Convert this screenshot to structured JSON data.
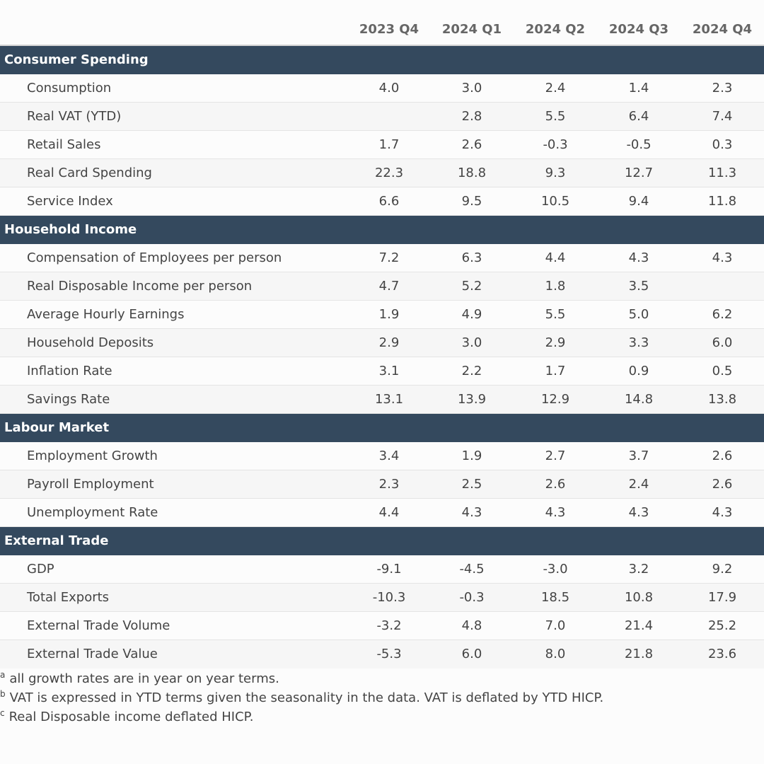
{
  "chart_data": {
    "type": "table",
    "columns": [
      "2023 Q4",
      "2024 Q1",
      "2024 Q2",
      "2024 Q3",
      "2024 Q4"
    ],
    "sections": [
      {
        "name": "Consumer Spending",
        "rows": [
          {
            "label": "Consumption",
            "values": [
              "4.0",
              "3.0",
              "2.4",
              "1.4",
              "2.3"
            ]
          },
          {
            "label": "Real VAT (YTD)",
            "values": [
              "",
              "2.8",
              "5.5",
              "6.4",
              "7.4"
            ]
          },
          {
            "label": "Retail Sales",
            "values": [
              "1.7",
              "2.6",
              "-0.3",
              "-0.5",
              "0.3"
            ]
          },
          {
            "label": "Real Card Spending",
            "values": [
              "22.3",
              "18.8",
              "9.3",
              "12.7",
              "11.3"
            ]
          },
          {
            "label": "Service Index",
            "values": [
              "6.6",
              "9.5",
              "10.5",
              "9.4",
              "11.8"
            ]
          }
        ]
      },
      {
        "name": "Household Income",
        "rows": [
          {
            "label": "Compensation of Employees per person",
            "values": [
              "7.2",
              "6.3",
              "4.4",
              "4.3",
              "4.3"
            ]
          },
          {
            "label": "Real Disposable Income per person",
            "values": [
              "4.7",
              "5.2",
              "1.8",
              "3.5",
              ""
            ]
          },
          {
            "label": "Average Hourly Earnings",
            "values": [
              "1.9",
              "4.9",
              "5.5",
              "5.0",
              "6.2"
            ]
          },
          {
            "label": "Household Deposits",
            "values": [
              "2.9",
              "3.0",
              "2.9",
              "3.3",
              "6.0"
            ]
          },
          {
            "label": "Inflation Rate",
            "values": [
              "3.1",
              "2.2",
              "1.7",
              "0.9",
              "0.5"
            ]
          },
          {
            "label": "Savings Rate",
            "values": [
              "13.1",
              "13.9",
              "12.9",
              "14.8",
              "13.8"
            ]
          }
        ]
      },
      {
        "name": "Labour Market",
        "rows": [
          {
            "label": "Employment Growth",
            "values": [
              "3.4",
              "1.9",
              "2.7",
              "3.7",
              "2.6"
            ]
          },
          {
            "label": "Payroll Employment",
            "values": [
              "2.3",
              "2.5",
              "2.6",
              "2.4",
              "2.6"
            ]
          },
          {
            "label": "Unemployment Rate",
            "values": [
              "4.4",
              "4.3",
              "4.3",
              "4.3",
              "4.3"
            ]
          }
        ]
      },
      {
        "name": "External Trade",
        "rows": [
          {
            "label": "GDP",
            "values": [
              "-9.1",
              "-4.5",
              "-3.0",
              "3.2",
              "9.2"
            ]
          },
          {
            "label": "Total Exports",
            "values": [
              "-10.3",
              "-0.3",
              "18.5",
              "10.8",
              "17.9"
            ]
          },
          {
            "label": "External Trade Volume",
            "values": [
              "-3.2",
              "4.8",
              "7.0",
              "21.4",
              "25.2"
            ]
          },
          {
            "label": "External Trade Value",
            "values": [
              "-5.3",
              "6.0",
              "8.0",
              "21.8",
              "23.6"
            ]
          }
        ]
      }
    ],
    "footnotes": [
      {
        "mark": "a",
        "text": "all growth rates are in year on year terms."
      },
      {
        "mark": "b",
        "text": "VAT is expressed in YTD terms given the seasonality in the data. VAT is deflated by YTD HICP."
      },
      {
        "mark": "c",
        "text": "Real Disposable income deflated HICP."
      }
    ]
  },
  "colors": {
    "section_background": "#34495e",
    "section_text": "#ffffff",
    "header_text": "#666666",
    "body_text": "#444444"
  }
}
